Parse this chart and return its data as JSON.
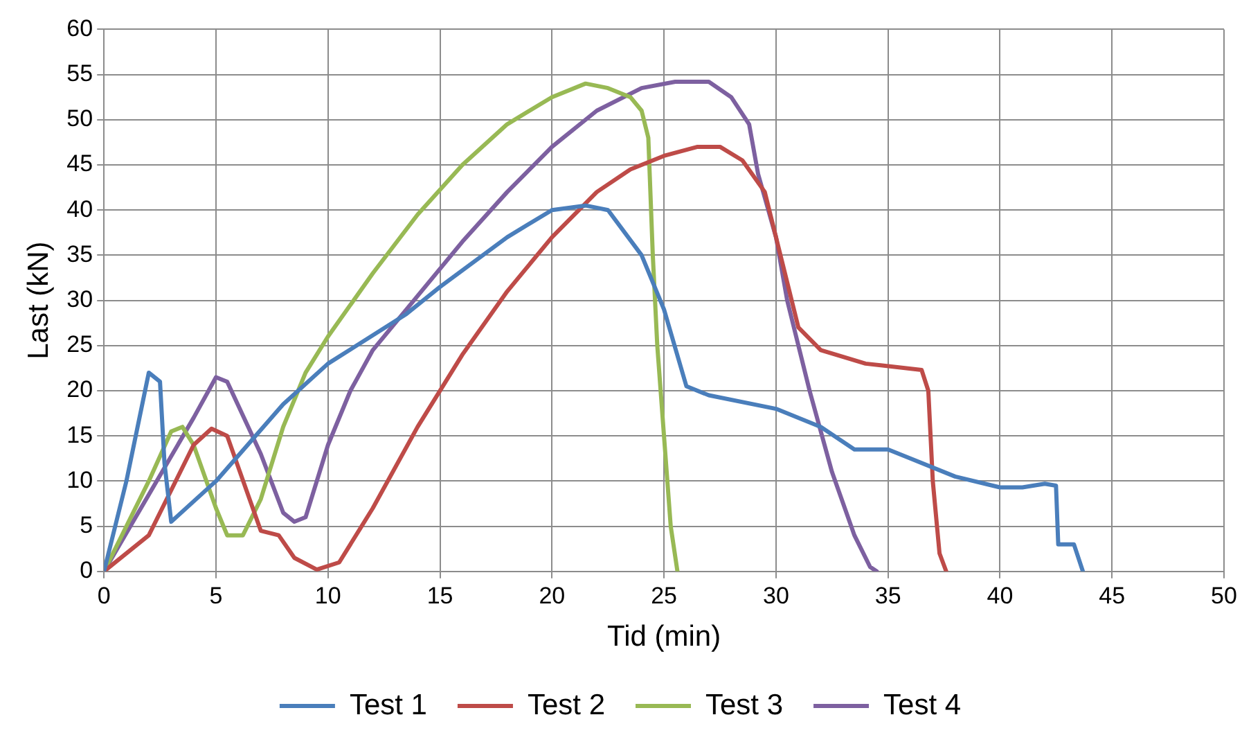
{
  "chart_data": {
    "type": "line",
    "xlabel": "Tid (min)",
    "ylabel": "Last (kN)",
    "xlim": [
      0,
      50
    ],
    "xticks": [
      0,
      5,
      10,
      15,
      20,
      25,
      30,
      35,
      40,
      45,
      50
    ],
    "ylim": [
      0,
      60
    ],
    "yticks": [
      0,
      5,
      10,
      15,
      20,
      25,
      30,
      35,
      40,
      45,
      50,
      55,
      60
    ],
    "grid": true,
    "legend": "bottom",
    "marker": "none",
    "line_style": "solid",
    "series": [
      {
        "name": "Test 1",
        "color": "#4a7ebb",
        "x": [
          0,
          1,
          2,
          2.5,
          2.7,
          3,
          5,
          8,
          10,
          13.5,
          15,
          18,
          20,
          21.5,
          22.5,
          24,
          25,
          26,
          27,
          30,
          32,
          33.5,
          35,
          36,
          38,
          40,
          41,
          42,
          42.5,
          42.6,
          43.3,
          43.7
        ],
        "values": [
          0,
          10,
          22,
          21,
          12,
          5.5,
          10,
          18.5,
          23,
          28.5,
          31.5,
          37,
          40,
          40.5,
          40,
          35,
          29,
          20.5,
          19.5,
          18,
          16,
          13.5,
          13.5,
          12.5,
          10.5,
          9.3,
          9.3,
          9.7,
          9.5,
          3,
          3,
          0
        ]
      },
      {
        "name": "Test 2",
        "color": "#be4b48",
        "x": [
          0,
          2,
          4,
          4.8,
          5.5,
          6.5,
          7,
          7.8,
          8.5,
          9.5,
          10.5,
          12,
          14,
          16,
          18,
          20,
          22,
          23.5,
          25,
          26.5,
          27.5,
          28.5,
          29.5,
          30.5,
          31,
          32,
          34,
          36.5,
          36.8,
          37,
          37.3,
          37.6
        ],
        "values": [
          0,
          4,
          14,
          15.8,
          15,
          8,
          4.5,
          4,
          1.5,
          0.2,
          1,
          7,
          16,
          24,
          31,
          37,
          42,
          44.5,
          46,
          47,
          47,
          45.5,
          42,
          32,
          27,
          24.5,
          23,
          22.3,
          20,
          10,
          2,
          0
        ]
      },
      {
        "name": "Test 3",
        "color": "#98b954",
        "x": [
          0,
          2,
          3,
          3.5,
          4,
          5,
          5.5,
          6.2,
          7,
          8,
          9,
          10,
          12,
          14,
          16,
          18,
          20,
          21.5,
          22.5,
          23.5,
          24,
          24.3,
          24.5,
          24.7,
          25,
          25.3,
          25.6
        ],
        "values": [
          0,
          10,
          15.5,
          16,
          14,
          7,
          4,
          4,
          8,
          16,
          22,
          26,
          33,
          39.5,
          45,
          49.5,
          52.5,
          54,
          53.5,
          52.5,
          51,
          48,
          35,
          25,
          15,
          5,
          0
        ]
      },
      {
        "name": "Test 4",
        "color": "#7d60a0",
        "x": [
          0,
          2,
          4,
          5,
          5.5,
          7,
          8,
          8.5,
          9,
          10,
          11,
          12,
          14,
          16,
          18,
          20,
          22,
          24,
          25.5,
          27,
          28,
          28.8,
          29.2,
          30,
          30.5,
          31.5,
          32.5,
          33.5,
          34.2,
          34.5
        ],
        "values": [
          0,
          8.5,
          17,
          21.5,
          21,
          13,
          6.5,
          5.5,
          6,
          14,
          20,
          24.5,
          30.5,
          36.5,
          42,
          47,
          51,
          53.5,
          54.2,
          54.2,
          52.5,
          49.5,
          44,
          37,
          30,
          20,
          11,
          4,
          0.5,
          0
        ]
      }
    ]
  }
}
